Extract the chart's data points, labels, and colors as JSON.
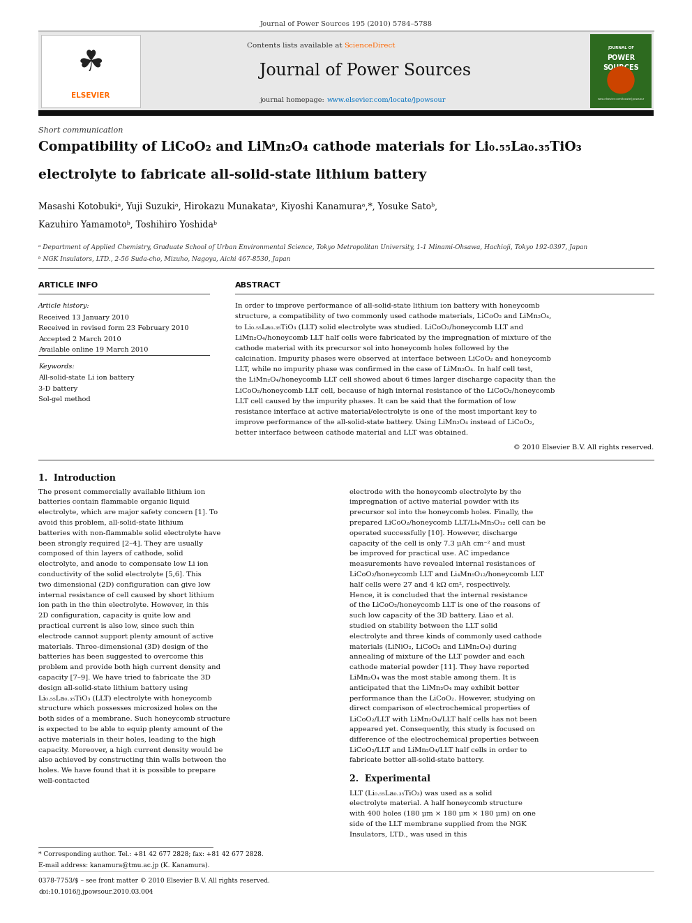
{
  "page_width": 9.92,
  "page_height": 13.23,
  "background_color": "#ffffff",
  "journal_cite": "Journal of Power Sources 195 (2010) 5784–5788",
  "contents_line_prefix": "Contents lists available at ",
  "contents_line_link": "ScienceDirect",
  "journal_name": "Journal of Power Sources",
  "journal_homepage_prefix": "journal homepage: ",
  "journal_homepage_link": "www.elsevier.com/locate/jpowsour",
  "section_label": "Short communication",
  "title_line1": "Compatibility of LiCoO₂ and LiMn₂O₄ cathode materials for Li₀.₅₅La₀.₃₅TiO₃",
  "title_line2": "electrolyte to fabricate all-solid-state lithium battery",
  "authors": "Masashi Kotobukiᵃ, Yuji Suzukiᵃ, Hirokazu Munakataᵃ, Kiyoshi Kanamuraᵃ,*, Yosuke Satoᵇ,",
  "authors2": "Kazuhiro Yamamotoᵇ, Toshihiro Yoshidaᵇ",
  "affil_a": "ᵃ Department of Applied Chemistry, Graduate School of Urban Environmental Science, Tokyo Metropolitan University, 1-1 Minami-Ohsawa, Hachioji, Tokyo 192-0397, Japan",
  "affil_b": "ᵇ NGK Insulators, LTD., 2-56 Suda-cho, Mizuho, Nagoya, Aichi 467-8530, Japan",
  "header_article_info": "ARTICLE INFO",
  "header_abstract": "ABSTRACT",
  "article_history_label": "Article history:",
  "received": "Received 13 January 2010",
  "received_revised": "Received in revised form 23 February 2010",
  "accepted": "Accepted 2 March 2010",
  "available": "Available online 19 March 2010",
  "keywords_label": "Keywords:",
  "keyword1": "All-solid-state Li ion battery",
  "keyword2": "3-D battery",
  "keyword3": "Sol-gel method",
  "abstract_text": "In order to improve performance of all-solid-state lithium ion battery with honeycomb structure, a compatibility of two commonly used cathode materials, LiCoO₂ and LiMn₂O₄, to Li₀.₅₅La₀.₃₅TiO₃ (LLT) solid electrolyte was studied. LiCoO₂/honeycomb LLT and LiMn₂O₄/honeycomb LLT half cells were fabricated by the impregnation of mixture of the cathode material with its precursor sol into honeycomb holes followed by the calcination. Impurity phases were observed at interface between LiCoO₂ and honeycomb LLT, while no impurity phase was confirmed in the case of LiMn₂O₄. In half cell test, the LiMn₂O₄/honeycomb LLT cell showed about 6 times larger discharge capacity than the LiCoO₂/honeycomb LLT cell, because of high internal resistance of the LiCoO₂/honeycomb LLT cell caused by the impurity phases. It can be said that the formation of low resistance interface at active material/electrolyte is one of the most important key to improve performance of the all-solid-state battery. Using LiMn₂O₄ instead of LiCoO₂, better interface between cathode material and LLT was obtained.",
  "copyright": "© 2010 Elsevier B.V. All rights reserved.",
  "section1_title": "1.  Introduction",
  "intro_col1": "The present commercially available lithium ion batteries contain flammable organic liquid electrolyte, which are major safety concern [1]. To avoid this problem, all-solid-state lithium batteries with non-flammable solid electrolyte have been strongly required [2–4]. They are usually composed of thin layers of cathode, solid electrolyte, and anode to compensate low Li ion conductivity of the solid electrolyte [5,6]. This two dimensional (2D) configuration can give low internal resistance of cell caused by short lithium ion path in the thin electrolyte. However, in this 2D configuration, capacity is quite low and practical current is also low, since such thin electrode cannot support plenty amount of active materials. Three-dimensional (3D) design of the batteries has been suggested to overcome this problem and provide both high current density and capacity [7–9]. We have tried to fabricate the 3D design all-solid-state lithium battery using Li₀.₅₅La₀.₃₅TiO₃ (LLT) electrolyte with honeycomb structure which possesses microsized holes on the both sides of a membrane. Such honeycomb structure is expected to be able to equip plenty amount of the active materials in their holes, leading to the high capacity. Moreover, a high current density would be also achieved by constructing thin walls between the holes. We have found that it is possible to prepare well-contacted",
  "intro_col2": "electrode with the honeycomb electrolyte by the impregnation of active material powder with its precursor sol into the honeycomb holes. Finally, the prepared LiCoO₂/honeycomb LLT/Li₄Mn₅O₁₂ cell can be operated successfully [10]. However, discharge capacity of the cell is only 7.3 μAh cm⁻² and must be improved for practical use. AC impedance measurements have revealed internal resistances of LiCoO₂/honeycomb LLT and Li₄Mn₅O₁₂/honeycomb LLT half cells were 27 and 4 kΩ cm², respectively. Hence, it is concluded that the internal resistance of the LiCoO₂/honeycomb LLT is one of the reasons of such low capacity of the 3D battery. Liao et al. studied on stability between the LLT solid electrolyte and three kinds of commonly used cathode materials (LiNiO₂, LiCoO₂ and LiMn₂O₄) during annealing of mixture of the LLT powder and each cathode material powder [11]. They have reported LiMn₂O₄ was the most stable among them. It is anticipated that the LiMn₂O₄ may exhibit better performance than the LiCoO₂. However, studying on direct comparison of electrochemical properties of LiCoO₂/LLT with LiMn₂O₄/LLT half cells has not been appeared yet. Consequently, this study is focused on difference of the electrochemical properties between LiCoO₂/LLT and LiMn₂O₄/LLT half cells in order to fabricate better all-solid-state battery.",
  "section2_title": "2.  Experimental",
  "exp_col2": "LLT (Li₀.₅₅La₀.₃₅TiO₃) was used as a solid electrolyte material. A half honeycomb structure with 400 holes (180 μm × 180 μm × 180 μm) on one side of the LLT membrane supplied from the NGK Insulators, LTD., was used in this",
  "footnote_corresponding": "* Corresponding author. Tel.: +81 42 677 2828; fax: +81 42 677 2828.",
  "footnote_email": "E-mail address: kanamura@tmu.ac.jp (K. Kanamura).",
  "footnote_issn": "0378-7753/$ – see front matter © 2010 Elsevier B.V. All rights reserved.",
  "footnote_doi": "doi:10.1016/j.jpowsour.2010.03.004",
  "header_bg_color": "#e8e8e8",
  "elsevier_orange": "#FF6B00",
  "sciencedirect_color": "#FF6600",
  "link_color": "#0070C0",
  "cover_green": "#2d6a1f",
  "cover_orange": "#cc4400"
}
